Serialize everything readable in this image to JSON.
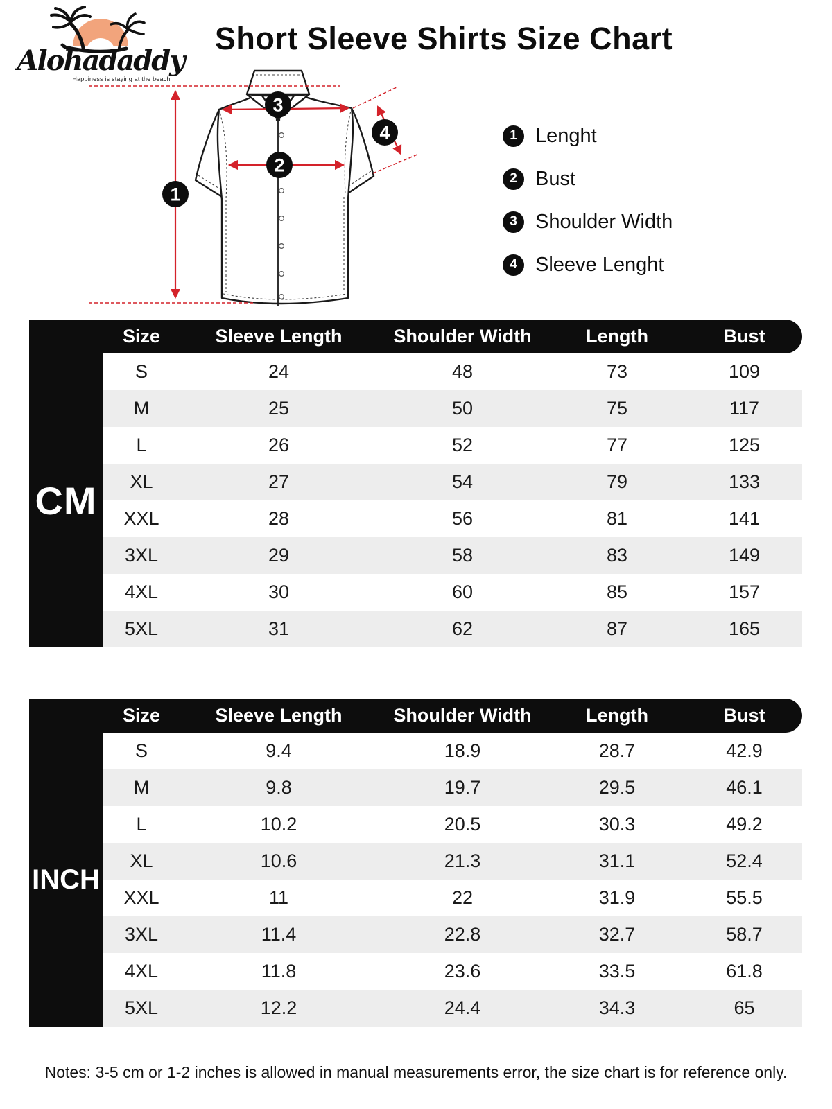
{
  "brand": {
    "name": "Alohadaddy",
    "tagline": "Happiness is staying at the beach"
  },
  "title": "Short Sleeve Shirts Size Chart",
  "legend": [
    {
      "num": "1",
      "label": "Lenght"
    },
    {
      "num": "2",
      "label": "Bust"
    },
    {
      "num": "3",
      "label": "Shoulder Width"
    },
    {
      "num": "4",
      "label": "Sleeve Lenght"
    }
  ],
  "tables": [
    {
      "unit_label": "CM",
      "columns": [
        "Size",
        "Sleeve Length",
        "Shoulder Width",
        "Length",
        "Bust"
      ],
      "rows": [
        [
          "S",
          "24",
          "48",
          "73",
          "109"
        ],
        [
          "M",
          "25",
          "50",
          "75",
          "117"
        ],
        [
          "L",
          "26",
          "52",
          "77",
          "125"
        ],
        [
          "XL",
          "27",
          "54",
          "79",
          "133"
        ],
        [
          "XXL",
          "28",
          "56",
          "81",
          "141"
        ],
        [
          "3XL",
          "29",
          "58",
          "83",
          "149"
        ],
        [
          "4XL",
          "30",
          "60",
          "85",
          "157"
        ],
        [
          "5XL",
          "31",
          "62",
          "87",
          "165"
        ]
      ]
    },
    {
      "unit_label": "INCH",
      "columns": [
        "Size",
        "Sleeve Length",
        "Shoulder Width",
        "Length",
        "Bust"
      ],
      "rows": [
        [
          "S",
          "9.4",
          "18.9",
          "28.7",
          "42.9"
        ],
        [
          "M",
          "9.8",
          "19.7",
          "29.5",
          "46.1"
        ],
        [
          "L",
          "10.2",
          "20.5",
          "30.3",
          "49.2"
        ],
        [
          "XL",
          "10.6",
          "21.3",
          "31.1",
          "52.4"
        ],
        [
          "XXL",
          "11",
          "22",
          "31.9",
          "55.5"
        ],
        [
          "3XL",
          "11.4",
          "22.8",
          "32.7",
          "58.7"
        ],
        [
          "4XL",
          "11.8",
          "23.6",
          "33.5",
          "61.8"
        ],
        [
          "5XL",
          "12.2",
          "24.4",
          "34.3",
          "65"
        ]
      ]
    }
  ],
  "notes": "Notes: 3-5 cm or 1-2 inches is allowed in manual measurements error, the size chart is for reference only.",
  "colors": {
    "accent_red": "#d4222a",
    "logo_orange": "#f2a47c",
    "stripe_gray": "#ededed",
    "ink_black": "#0d0d0d"
  }
}
